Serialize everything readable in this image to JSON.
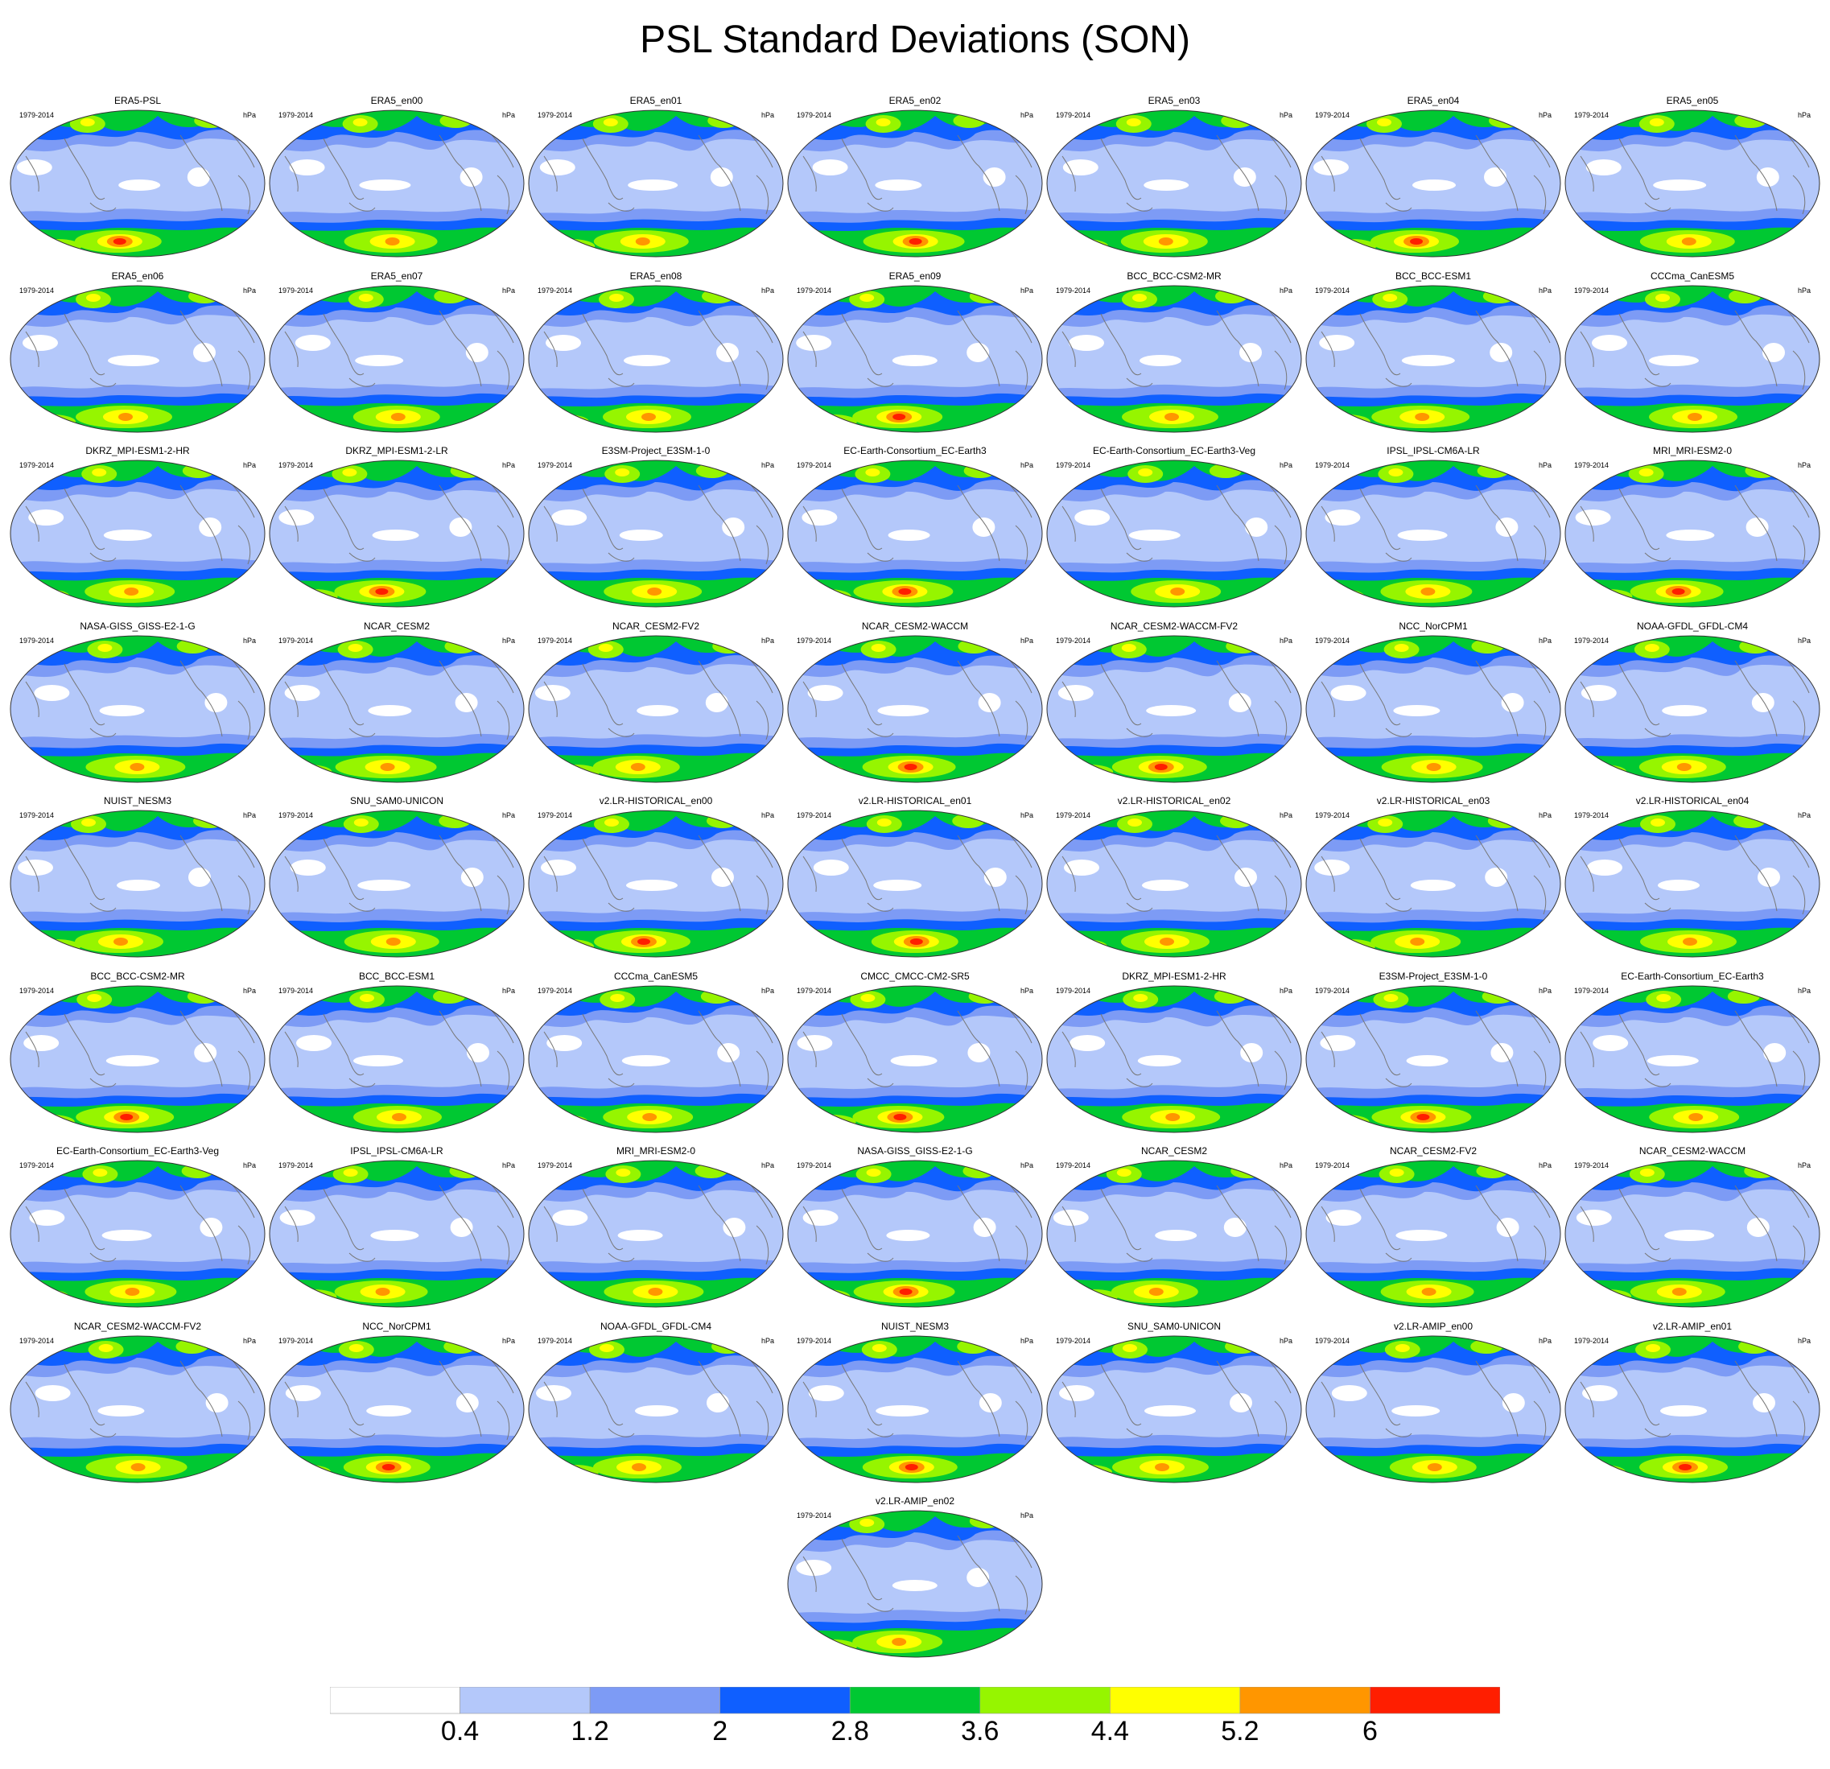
{
  "title": "PSL Standard Deviations (SON)",
  "period_label": "1979-2014",
  "units_label": "hPa",
  "panels": [
    "ERA5-PSL",
    "ERA5_en00",
    "ERA5_en01",
    "ERA5_en02",
    "ERA5_en03",
    "ERA5_en04",
    "ERA5_en05",
    "ERA5_en06",
    "ERA5_en07",
    "ERA5_en08",
    "ERA5_en09",
    "BCC_BCC-CSM2-MR",
    "BCC_BCC-ESM1",
    "CCCma_CanESM5",
    "DKRZ_MPI-ESM1-2-HR",
    "DKRZ_MPI-ESM1-2-LR",
    "E3SM-Project_E3SM-1-0",
    "EC-Earth-Consortium_EC-Earth3",
    "EC-Earth-Consortium_EC-Earth3-Veg",
    "IPSL_IPSL-CM6A-LR",
    "MRI_MRI-ESM2-0",
    "NASA-GISS_GISS-E2-1-G",
    "NCAR_CESM2",
    "NCAR_CESM2-FV2",
    "NCAR_CESM2-WACCM",
    "NCAR_CESM2-WACCM-FV2",
    "NCC_NorCPM1",
    "NOAA-GFDL_GFDL-CM4",
    "NUIST_NESM3",
    "SNU_SAM0-UNICON",
    "v2.LR-HISTORICAL_en00",
    "v2.LR-HISTORICAL_en01",
    "v2.LR-HISTORICAL_en02",
    "v2.LR-HISTORICAL_en03",
    "v2.LR-HISTORICAL_en04",
    "BCC_BCC-CSM2-MR",
    "BCC_BCC-ESM1",
    "CCCma_CanESM5",
    "CMCC_CMCC-CM2-SR5",
    "DKRZ_MPI-ESM1-2-HR",
    "E3SM-Project_E3SM-1-0",
    "EC-Earth-Consortium_EC-Earth3",
    "EC-Earth-Consortium_EC-Earth3-Veg",
    "IPSL_IPSL-CM6A-LR",
    "MRI_MRI-ESM2-0",
    "NASA-GISS_GISS-E2-1-G",
    "NCAR_CESM2",
    "NCAR_CESM2-FV2",
    "NCAR_CESM2-WACCM",
    "NCAR_CESM2-WACCM-FV2",
    "NCC_NorCPM1",
    "NOAA-GFDL_GFDL-CM4",
    "NUIST_NESM3",
    "SNU_SAM0-UNICON",
    "v2.LR-AMIP_en00",
    "v2.LR-AMIP_en01",
    "v2.LR-AMIP_en02"
  ],
  "colorbar": {
    "colors": [
      "#ffffff",
      "#b4c8fa",
      "#7d9bf5",
      "#0f5fff",
      "#00c832",
      "#96f500",
      "#ffff00",
      "#ff9600",
      "#ff1e00"
    ],
    "tick_labels": [
      "0.4",
      "1.2",
      "2",
      "2.8",
      "3.6",
      "4.4",
      "5.2",
      "6"
    ]
  }
}
